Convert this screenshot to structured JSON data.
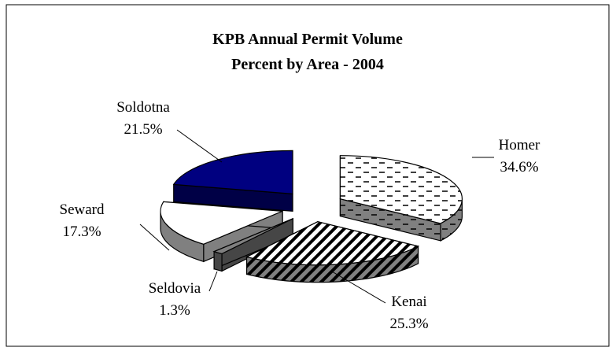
{
  "chart_data": {
    "type": "pie",
    "title": "KPB Annual Permit Volume",
    "subtitle": "Percent by Area - 2004",
    "categories": [
      "Homer",
      "Kenai",
      "Seldovia",
      "Seward",
      "Soldotna"
    ],
    "values": [
      34.6,
      25.3,
      1.3,
      17.3,
      21.5
    ],
    "value_labels": [
      "34.6%",
      "25.3%",
      "1.3%",
      "17.3%",
      "21.5%"
    ],
    "colors": [
      "#ffffff",
      "#ffffff",
      "#808080",
      "#ffffff",
      "#000080"
    ],
    "patterns": [
      "dash",
      "diagonal",
      "solid",
      "solid",
      "solid"
    ],
    "exploded": true,
    "three_d": true
  }
}
